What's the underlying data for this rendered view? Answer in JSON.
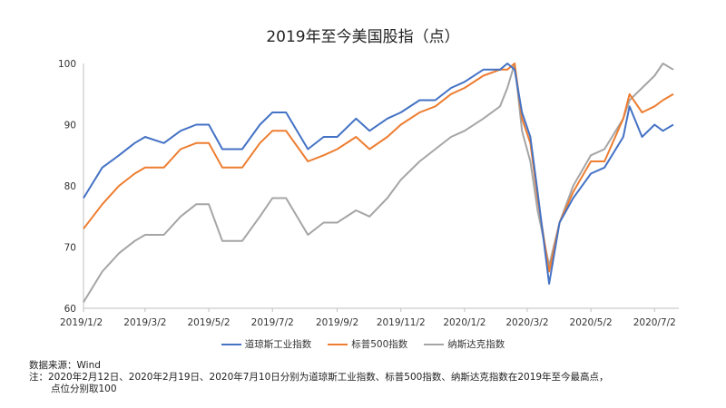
{
  "chart_data": {
    "type": "line",
    "title": "2019年至今美国股指（点）",
    "ylim": [
      60,
      100
    ],
    "yticks": [
      60,
      70,
      80,
      90,
      100
    ],
    "xticks": [
      "2019/1/2",
      "2019/3/2",
      "2019/5/2",
      "2019/7/2",
      "2019/9/2",
      "2019/11/2",
      "2020/1/2",
      "2020/3/2",
      "2020/5/2",
      "2020/7/2"
    ],
    "x": [
      "2019/1/2",
      "2019/1/20",
      "2019/2/5",
      "2019/2/20",
      "2019/3/2",
      "2019/3/20",
      "2019/4/5",
      "2019/4/20",
      "2019/5/2",
      "2019/5/15",
      "2019/6/3",
      "2019/6/20",
      "2019/7/2",
      "2019/7/15",
      "2019/8/5",
      "2019/8/20",
      "2019/9/2",
      "2019/9/20",
      "2019/10/3",
      "2019/10/20",
      "2019/11/2",
      "2019/11/20",
      "2019/12/5",
      "2019/12/20",
      "2020/1/2",
      "2020/1/20",
      "2020/2/5",
      "2020/2/12",
      "2020/2/19",
      "2020/2/26",
      "2020/3/5",
      "2020/3/12",
      "2020/3/23",
      "2020/4/2",
      "2020/4/15",
      "2020/5/2",
      "2020/5/15",
      "2020/6/2",
      "2020/6/8",
      "2020/6/20",
      "2020/7/2",
      "2020/7/10",
      "2020/7/20"
    ],
    "series": [
      {
        "name": "道琼斯工业指数",
        "color": "#4472C4",
        "values": [
          78,
          83,
          85,
          87,
          88,
          87,
          89,
          90,
          90,
          86,
          86,
          90,
          92,
          92,
          86,
          88,
          88,
          91,
          89,
          91,
          92,
          94,
          94,
          96,
          97,
          99,
          99,
          100,
          99,
          92,
          88,
          79,
          64,
          74,
          78,
          82,
          83,
          88,
          93,
          88,
          90,
          89,
          90
        ]
      },
      {
        "name": "标普500指数",
        "color": "#ED7D31",
        "values": [
          73,
          77,
          80,
          82,
          83,
          83,
          86,
          87,
          87,
          83,
          83,
          87,
          89,
          89,
          84,
          85,
          86,
          88,
          86,
          88,
          90,
          92,
          93,
          95,
          96,
          98,
          99,
          99,
          100,
          91,
          87,
          78,
          66,
          74,
          79,
          84,
          84,
          91,
          95,
          92,
          93,
          94,
          95
        ]
      },
      {
        "name": "纳斯达克指数",
        "color": "#A5A5A5",
        "values": [
          61,
          66,
          69,
          71,
          72,
          72,
          75,
          77,
          77,
          71,
          71,
          75,
          78,
          78,
          72,
          74,
          74,
          76,
          75,
          78,
          81,
          84,
          86,
          88,
          89,
          91,
          93,
          96,
          100,
          89,
          84,
          76,
          67,
          74,
          80,
          85,
          86,
          91,
          94,
          96,
          98,
          100,
          99
        ]
      }
    ]
  },
  "notes": {
    "source": "数据来源：Wind",
    "line1": "注：2020年2月12日、2020年2月19日、2020年7月10日分别为道琼斯工业指数、标普500指数、纳斯达克指数在2019年至今最高点，",
    "line2": "点位分别取100"
  }
}
